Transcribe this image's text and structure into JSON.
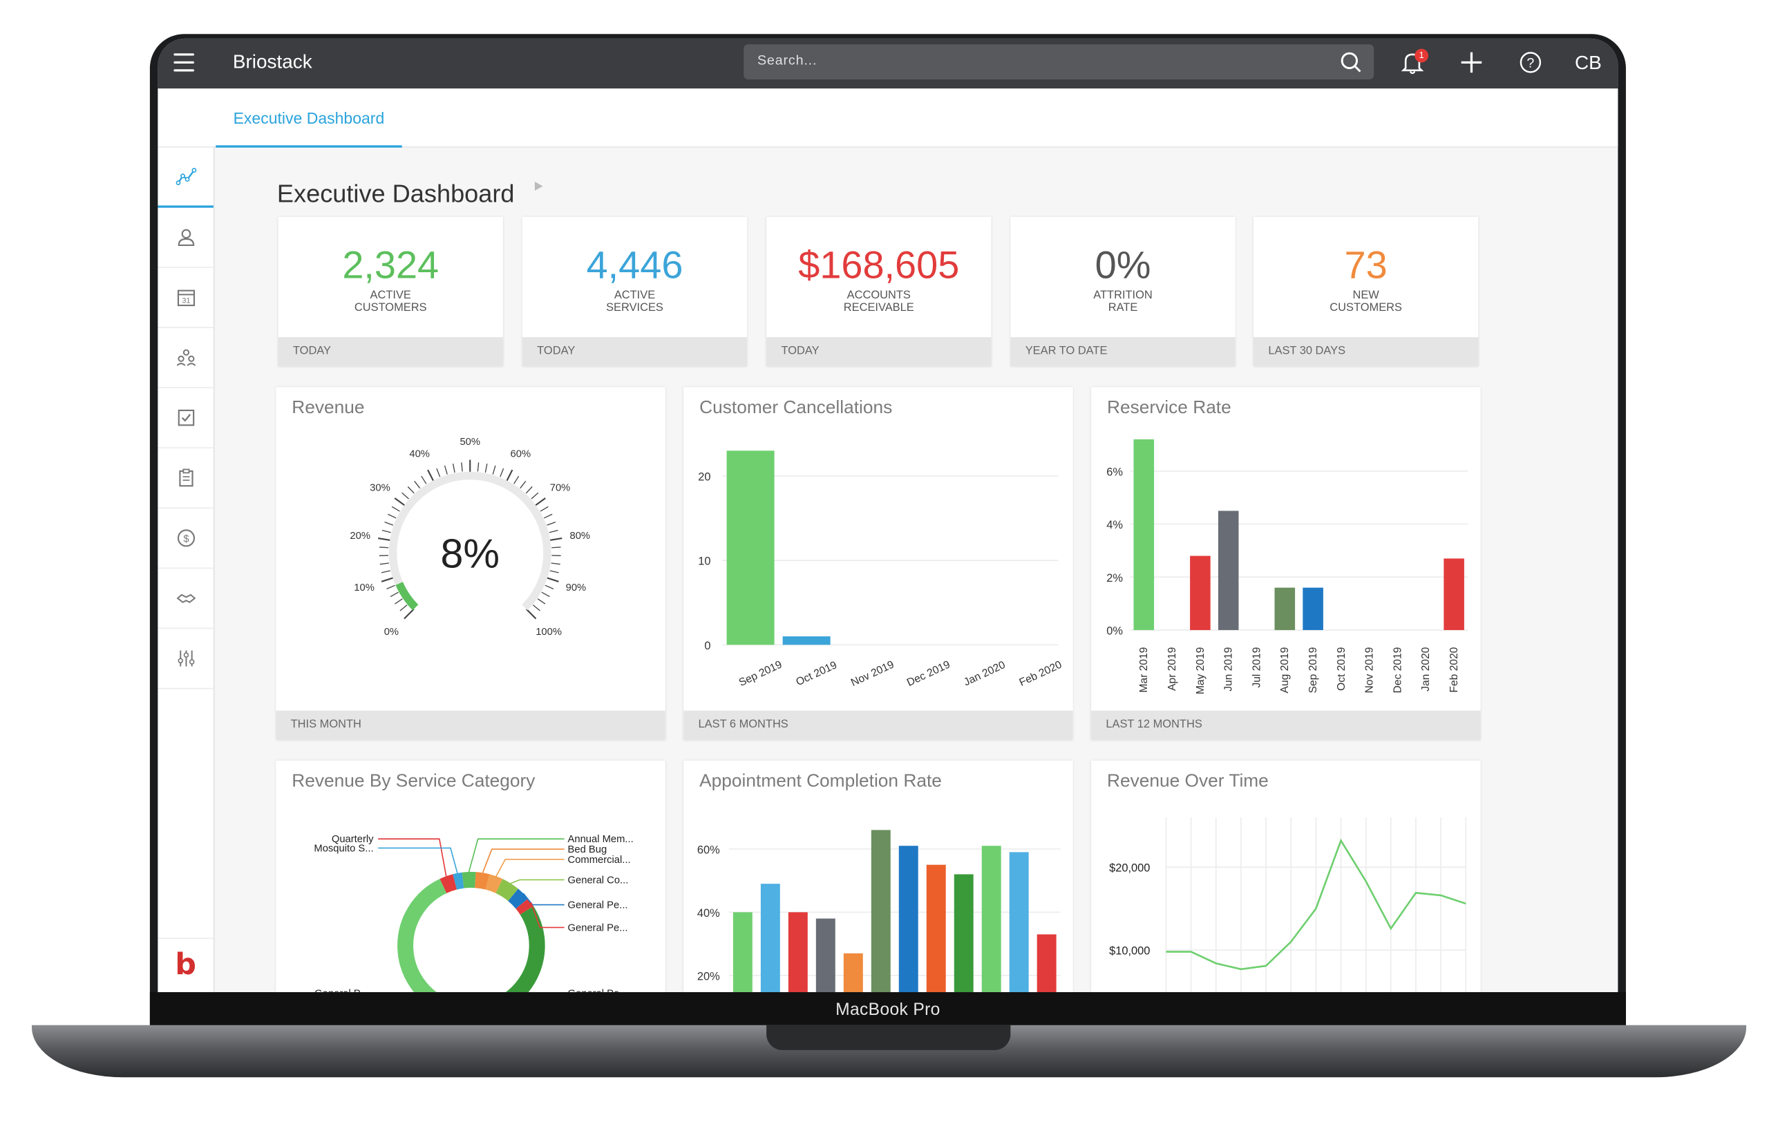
{
  "app": {
    "name": "Briostack",
    "user_initials": "CB",
    "notifications": "1",
    "device_label": "MacBook Pro"
  },
  "search": {
    "placeholder": "Search..."
  },
  "tabs": [
    {
      "label": "Executive Dashboard"
    }
  ],
  "sidebar": {
    "items": [
      "analytics-icon",
      "user-icon",
      "calendar-icon",
      "team-icon",
      "checklist-icon",
      "clipboard-icon",
      "dollar-icon",
      "handshake-icon",
      "sliders-icon"
    ],
    "calendar_day": "31",
    "logo": "b"
  },
  "page": {
    "title": "Executive Dashboard"
  },
  "kpis": [
    {
      "value": "2,324",
      "label1": "ACTIVE",
      "label2": "CUSTOMERS",
      "period": "TODAY",
      "color": "#5cbf5c"
    },
    {
      "value": "4,446",
      "label1": "ACTIVE",
      "label2": "SERVICES",
      "period": "TODAY",
      "color": "#3ba4d9"
    },
    {
      "value": "$168,605",
      "label1": "ACCOUNTS",
      "label2": "RECEIVABLE",
      "period": "TODAY",
      "color": "#e23b3b"
    },
    {
      "value": "0%",
      "label1": "ATTRITION",
      "label2": "RATE",
      "period": "YEAR TO DATE",
      "color": "#555555"
    },
    {
      "value": "73",
      "label1": "NEW",
      "label2": "CUSTOMERS",
      "period": "LAST 30 DAYS",
      "color": "#f08a3c"
    }
  ],
  "cards": {
    "revenue": {
      "title": "Revenue",
      "footer": "THIS MONTH"
    },
    "cancellations": {
      "title": "Customer Cancellations",
      "footer": "LAST 6 MONTHS"
    },
    "reservice": {
      "title": "Reservice Rate",
      "footer": "LAST 12 MONTHS"
    },
    "service_category": {
      "title": "Revenue By Service Category"
    },
    "appointment": {
      "title": "Appointment Completion Rate"
    },
    "revenue_time": {
      "title": "Revenue Over Time"
    }
  },
  "chart_data": [
    {
      "type": "gauge",
      "title": "Revenue",
      "value": 8,
      "display": "8%",
      "ticks": [
        "0%",
        "10%",
        "20%",
        "30%",
        "40%",
        "50%",
        "60%",
        "70%",
        "80%",
        "90%",
        "100%"
      ],
      "color": "#5cbf5c"
    },
    {
      "type": "bar",
      "title": "Customer Cancellations",
      "categories": [
        "Sep 2019",
        "Oct 2019",
        "Nov 2019",
        "Dec 2019",
        "Jan 2020",
        "Feb 2020"
      ],
      "values": [
        23,
        1,
        0,
        0,
        0,
        0
      ],
      "colors": [
        "#6fcf6f",
        "#3ba4d9"
      ],
      "yticks": [
        "0",
        "10",
        "20"
      ],
      "ylim": [
        0,
        23
      ]
    },
    {
      "type": "bar",
      "title": "Reservice Rate",
      "categories": [
        "Mar 2019",
        "Apr 2019",
        "May 2019",
        "Jun 2019",
        "Jul 2019",
        "Aug 2019",
        "Sep 2019",
        "Oct 2019",
        "Nov 2019",
        "Dec 2019",
        "Jan 2020",
        "Feb 2020"
      ],
      "values": [
        7.2,
        0,
        2.8,
        4.5,
        0,
        1.6,
        1.6,
        0,
        0,
        0,
        0,
        2.7
      ],
      "colors": [
        "#6fcf6f",
        "#e23b3b",
        "#e23b3b",
        "#686d75",
        "#6fcf6f",
        "#6b8f5e",
        "#1f78c4",
        "#6fcf6f",
        "#6fcf6f",
        "#6fcf6f",
        "#6fcf6f",
        "#e23b3b"
      ],
      "yticks": [
        "0%",
        "2%",
        "4%",
        "6%"
      ],
      "ylim": [
        0,
        7.2
      ]
    },
    {
      "type": "pie",
      "title": "Revenue By Service Category",
      "labels": [
        "Quarterly",
        "Mosquito S...",
        "Annual Mem...",
        "Bed Bug",
        "Commercial...",
        "General Co...",
        "General Pe...",
        "General Pe...",
        "General P...",
        "General Pe..."
      ],
      "values": [
        3,
        2,
        3,
        3,
        3,
        4,
        3,
        2,
        40,
        37
      ],
      "colors": [
        "#e23b3b",
        "#3ba4d9",
        "#5cbf5c",
        "#f08a3c",
        "#f0a050",
        "#8bc34a",
        "#1f78c4",
        "#e23b3b",
        "#3a9a3a",
        "#6fcf6f"
      ]
    },
    {
      "type": "bar",
      "title": "Appointment Completion Rate",
      "values": [
        40,
        49,
        40,
        38,
        27,
        66,
        61,
        55,
        52,
        61,
        59,
        33
      ],
      "colors": [
        "#6fcf6f",
        "#4fb0e3",
        "#e23b3b",
        "#686d75",
        "#f08a3c",
        "#6b8f5e",
        "#1f78c4",
        "#ec5f2b",
        "#3a9a3a",
        "#6fcf6f",
        "#4fb0e3",
        "#e23b3b"
      ],
      "yticks": [
        "20%",
        "40%",
        "60%"
      ],
      "ylim": [
        0,
        70
      ]
    },
    {
      "type": "line",
      "title": "Revenue Over Time",
      "values": [
        9800,
        9800,
        8400,
        7700,
        8100,
        11000,
        15000,
        23200,
        18300,
        12600,
        16900,
        16600,
        15600
      ],
      "yticks": [
        "$10,000",
        "$20,000"
      ],
      "color": "#6fcf6f"
    }
  ]
}
